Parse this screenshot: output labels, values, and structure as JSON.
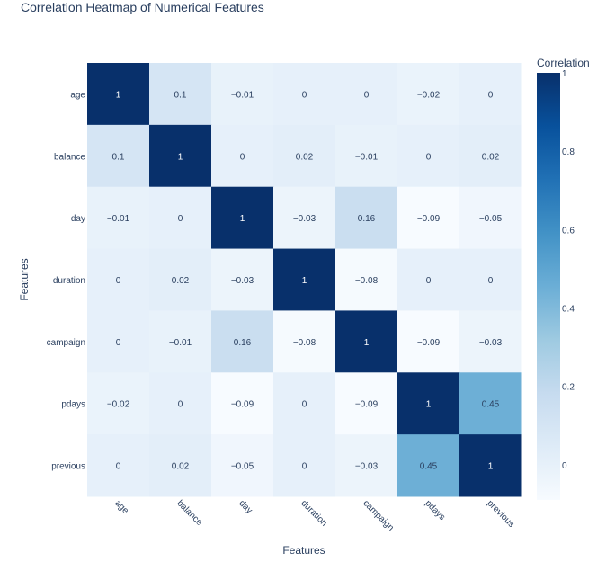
{
  "chart_data": {
    "type": "heatmap",
    "title": "Correlation Heatmap of Numerical Features",
    "xlabel": "Features",
    "ylabel": "Features",
    "x_categories": [
      "age",
      "balance",
      "day",
      "duration",
      "campaign",
      "pdays",
      "previous"
    ],
    "y_categories": [
      "age",
      "balance",
      "day",
      "duration",
      "campaign",
      "pdays",
      "previous"
    ],
    "z": [
      [
        1,
        0.1,
        -0.01,
        0,
        0,
        -0.02,
        0
      ],
      [
        0.1,
        1,
        0,
        0.02,
        -0.01,
        0,
        0.02
      ],
      [
        -0.01,
        0,
        1,
        -0.03,
        0.16,
        -0.09,
        -0.05
      ],
      [
        0,
        0.02,
        -0.03,
        1,
        -0.08,
        0,
        0
      ],
      [
        0,
        -0.01,
        0.16,
        -0.08,
        1,
        -0.09,
        -0.03
      ],
      [
        -0.02,
        0,
        -0.09,
        0,
        -0.09,
        1,
        0.45
      ],
      [
        0,
        0.02,
        -0.05,
        0,
        -0.03,
        0.45,
        1
      ]
    ],
    "text": [
      [
        "1",
        "0.1",
        "−0.01",
        "0",
        "0",
        "−0.02",
        "0"
      ],
      [
        "0.1",
        "1",
        "0",
        "0.02",
        "−0.01",
        "0",
        "0.02"
      ],
      [
        "−0.01",
        "0",
        "1",
        "−0.03",
        "0.16",
        "−0.09",
        "−0.05"
      ],
      [
        "0",
        "0.02",
        "−0.03",
        "1",
        "−0.08",
        "0",
        "0"
      ],
      [
        "0",
        "−0.01",
        "0.16",
        "−0.08",
        "1",
        "−0.09",
        "−0.03"
      ],
      [
        "−0.02",
        "0",
        "−0.09",
        "0",
        "−0.09",
        "1",
        "0.45"
      ],
      [
        "0",
        "0.02",
        "−0.05",
        "0",
        "−0.03",
        "0.45",
        "1"
      ]
    ],
    "zmin": -0.09,
    "zmax": 1,
    "colorscale": "Blues",
    "colorbar": {
      "title": "Correlation",
      "tickvals": [
        0,
        0.2,
        0.4,
        0.6,
        0.8,
        1
      ],
      "ticktext": [
        "0",
        "0.2",
        "0.4",
        "0.6",
        "0.8",
        "1"
      ]
    }
  }
}
